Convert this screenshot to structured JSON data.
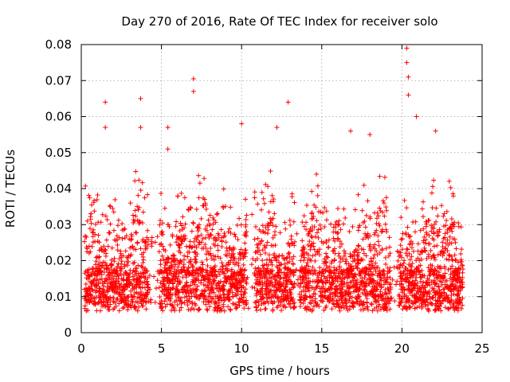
{
  "chart_data": {
    "type": "scatter",
    "title": "Day 270 of 2016, Rate Of TEC Index for receiver solo",
    "xlabel": "GPS time / hours",
    "ylabel": "ROTI / TECUs",
    "xlim": [
      0,
      25
    ],
    "ylim": [
      0,
      0.08
    ],
    "grid": true,
    "marker": "+",
    "color": "#ff0000",
    "x_ticks": [
      0,
      5,
      10,
      15,
      20,
      25
    ],
    "x_tick_labels": [
      "0",
      "5",
      "10",
      "15",
      "20",
      "25"
    ],
    "y_ticks": [
      0,
      0.01,
      0.02,
      0.03,
      0.04,
      0.05,
      0.06,
      0.07,
      0.08
    ],
    "y_tick_labels": [
      "0",
      "0.01",
      "0.02",
      "0.03",
      "0.04",
      "0.05",
      "0.06",
      "0.07",
      "0.08"
    ],
    "data_coverage_hours": [
      0.2,
      23.8
    ],
    "typical_range": [
      0.006,
      0.04
    ],
    "notable_points": [
      {
        "x": 1.5,
        "y": 0.064
      },
      {
        "x": 1.5,
        "y": 0.057
      },
      {
        "x": 3.7,
        "y": 0.065
      },
      {
        "x": 3.7,
        "y": 0.057
      },
      {
        "x": 5.4,
        "y": 0.057
      },
      {
        "x": 5.4,
        "y": 0.051
      },
      {
        "x": 7.0,
        "y": 0.0705
      },
      {
        "x": 7.0,
        "y": 0.067
      },
      {
        "x": 10.0,
        "y": 0.058
      },
      {
        "x": 12.2,
        "y": 0.057
      },
      {
        "x": 12.9,
        "y": 0.064
      },
      {
        "x": 16.8,
        "y": 0.056
      },
      {
        "x": 18.0,
        "y": 0.055
      },
      {
        "x": 20.3,
        "y": 0.079
      },
      {
        "x": 20.3,
        "y": 0.075
      },
      {
        "x": 20.4,
        "y": 0.071
      },
      {
        "x": 20.4,
        "y": 0.066
      },
      {
        "x": 20.9,
        "y": 0.06
      },
      {
        "x": 22.1,
        "y": 0.056
      }
    ]
  }
}
